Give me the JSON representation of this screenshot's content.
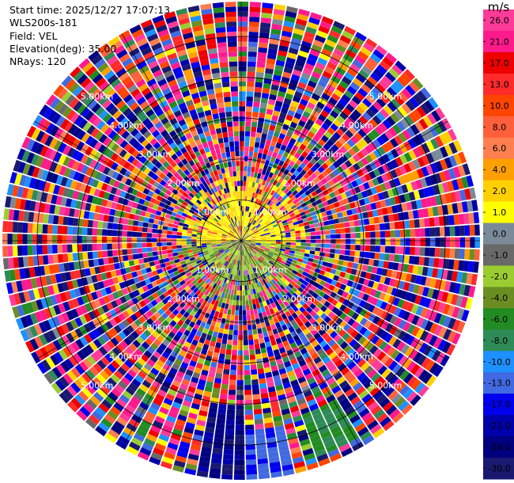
{
  "info": {
    "start_time": "Start time: 2025/12/27 17:07:13",
    "instrument": "WLS200s-181",
    "field": "Field: VEL",
    "elevation": "Elevation(deg): 35.00",
    "nrays": "NRays: 120"
  },
  "chart_data": {
    "type": "heatmap",
    "projection": "polar (PPI scan)",
    "field": "VEL",
    "units": "m/s",
    "n_rays": 120,
    "range_rings_km": [
      1.0,
      2.0,
      3.0,
      4.0,
      5.0
    ],
    "range_ring_labels": [
      "1.00km",
      "2.00km",
      "3.00km",
      "4.00km",
      "5.00km"
    ],
    "max_range_km": 5.85,
    "colorbar": {
      "title": "m/s",
      "ticks": [
        "26.0",
        "21.0",
        "17.0",
        "13.0",
        "10.0",
        "8.0",
        "6.0",
        "4.0",
        "2.0",
        "1.0",
        "0.0",
        "-1.0",
        "-2.0",
        "-4.0",
        "-6.0",
        "-8.0",
        "-10.0",
        "-13.0",
        "-17.0",
        "-21.0",
        "-26.0",
        "-30.0"
      ],
      "bands": [
        {
          "min": 26,
          "max": 30,
          "color": "#ff3b9a"
        },
        {
          "min": 21,
          "max": 26,
          "color": "#ff1a8c"
        },
        {
          "min": 17,
          "max": 21,
          "color": "#ee0000"
        },
        {
          "min": 13,
          "max": 17,
          "color": "#ff2a2a"
        },
        {
          "min": 10,
          "max": 13,
          "color": "#ff4500"
        },
        {
          "min": 8,
          "max": 10,
          "color": "#ff5f3a"
        },
        {
          "min": 6,
          "max": 8,
          "color": "#ff7f50"
        },
        {
          "min": 4,
          "max": 6,
          "color": "#ff9f00"
        },
        {
          "min": 2,
          "max": 4,
          "color": "#ffd000"
        },
        {
          "min": 1,
          "max": 2,
          "color": "#ffff00"
        },
        {
          "min": 0,
          "max": 1,
          "color": "#7a8a98"
        },
        {
          "min": -1,
          "max": 0,
          "color": "#696969"
        },
        {
          "min": -2,
          "max": -1,
          "color": "#9acd32"
        },
        {
          "min": -4,
          "max": -2,
          "color": "#6b8e23"
        },
        {
          "min": -6,
          "max": -4,
          "color": "#228b22"
        },
        {
          "min": -8,
          "max": -6,
          "color": "#2e8b57"
        },
        {
          "min": -10,
          "max": -8,
          "color": "#1e90ff"
        },
        {
          "min": -13,
          "max": -10,
          "color": "#4169e1"
        },
        {
          "min": -17,
          "max": -13,
          "color": "#0000ee"
        },
        {
          "min": -21,
          "max": -17,
          "color": "#0000aa"
        },
        {
          "min": -26,
          "max": -21,
          "color": "#000080"
        },
        {
          "min": -30,
          "max": -26,
          "color": "#191970"
        }
      ]
    },
    "notable_features": [
      "near-field (0–1 km) dominated by yellow (+1 to +2 m/s) to the north and olive/green (-1 to -2 m/s) to the south",
      "far range mostly noise with mixed colors",
      "coherent strong negative velocities (-17 to -30 m/s, dark blue/navy) around azimuth 180–190 deg at 4–5.85 km",
      "green band (-4 to -8 m/s) around azimuth 150–160 deg at 4.5–5.6 km"
    ],
    "grid": true
  }
}
